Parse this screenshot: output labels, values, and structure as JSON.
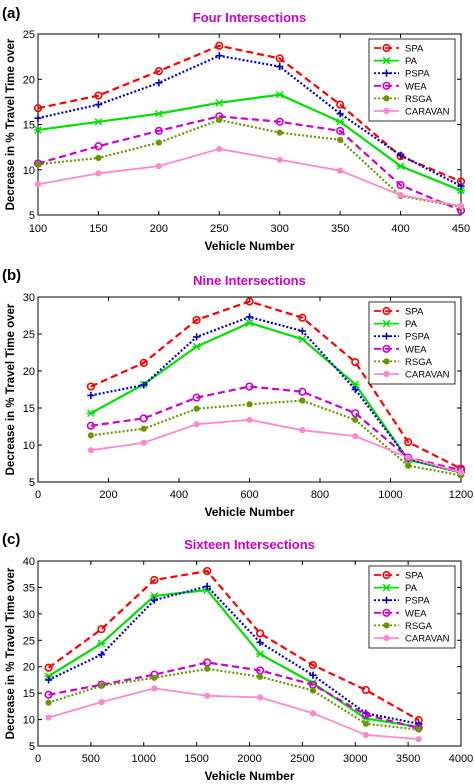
{
  "colors": {
    "SPA": "#ff0000",
    "PA": "#00e000",
    "PSPA": "#0000cc",
    "WEA": "#cc00cc",
    "RSGA": "#669900",
    "CARAVAN": "#ff88cc",
    "title": "#cc00cc"
  },
  "chart_data": [
    {
      "type": "line",
      "panel_label": "(a)",
      "title": "Four Intersections",
      "xlabel": "Vehicle Number",
      "ylabel": "Decrease in % Travel Time over",
      "xlim": [
        100,
        450
      ],
      "ylim": [
        5,
        25
      ],
      "xticks": [
        100,
        150,
        200,
        250,
        300,
        350,
        400,
        450
      ],
      "yticks": [
        5,
        10,
        15,
        20,
        25
      ],
      "x": [
        100,
        150,
        200,
        250,
        300,
        350,
        400,
        450
      ],
      "legend_position": "top-right",
      "grid": false,
      "series": [
        {
          "name": "SPA",
          "values": [
            16.8,
            18.2,
            20.9,
            23.7,
            22.3,
            17.2,
            11.5,
            8.7
          ]
        },
        {
          "name": "PA",
          "values": [
            14.4,
            15.3,
            16.2,
            17.4,
            18.3,
            15.3,
            10.4,
            7.7
          ]
        },
        {
          "name": "PSPA",
          "values": [
            15.7,
            17.2,
            19.6,
            22.6,
            21.4,
            16.2,
            11.6,
            8.2
          ]
        },
        {
          "name": "WEA",
          "values": [
            10.7,
            12.6,
            14.3,
            15.9,
            15.3,
            14.3,
            8.3,
            5.5
          ]
        },
        {
          "name": "RSGA",
          "values": [
            10.6,
            11.3,
            13.0,
            15.5,
            14.1,
            13.3,
            7.1,
            5.9
          ]
        },
        {
          "name": "CARAVAN",
          "values": [
            8.4,
            9.6,
            10.4,
            12.3,
            11.1,
            9.9,
            7.2,
            6.0
          ]
        }
      ]
    },
    {
      "type": "line",
      "panel_label": "(b)",
      "title": "Nine Intersections",
      "xlabel": "Vehicle Number",
      "ylabel": "Decrease in % Travel Time over",
      "xlim": [
        0,
        1200
      ],
      "ylim": [
        5,
        30
      ],
      "xticks": [
        0,
        200,
        400,
        600,
        800,
        1000,
        1200
      ],
      "yticks": [
        5,
        10,
        15,
        20,
        25,
        30
      ],
      "x": [
        150,
        300,
        450,
        600,
        750,
        900,
        1050,
        1200
      ],
      "legend_position": "top-right",
      "grid": false,
      "series": [
        {
          "name": "SPA",
          "values": [
            17.9,
            21.1,
            26.9,
            29.4,
            27.2,
            21.2,
            10.4,
            6.8
          ]
        },
        {
          "name": "PA",
          "values": [
            14.3,
            18.2,
            23.3,
            26.5,
            24.3,
            18.2,
            8.0,
            6.3
          ]
        },
        {
          "name": "PSPA",
          "values": [
            16.7,
            18.1,
            24.6,
            27.3,
            25.4,
            17.5,
            8.1,
            6.3
          ]
        },
        {
          "name": "WEA",
          "values": [
            12.6,
            13.6,
            16.4,
            17.9,
            17.2,
            14.3,
            8.3,
            6.6
          ]
        },
        {
          "name": "RSGA",
          "values": [
            11.3,
            12.2,
            14.9,
            15.5,
            16.0,
            13.4,
            7.2,
            5.9
          ]
        },
        {
          "name": "CARAVAN",
          "values": [
            9.3,
            10.3,
            12.8,
            13.4,
            12.0,
            11.2,
            8.3,
            6.3
          ]
        }
      ]
    },
    {
      "type": "line",
      "panel_label": "(c)",
      "title": "Sixteen Intersections",
      "xlabel": "Vehicle Number",
      "ylabel": "Decrease in % Travel Time over",
      "xlim": [
        0,
        4000
      ],
      "ylim": [
        5,
        40
      ],
      "xticks": [
        0,
        500,
        1000,
        1500,
        2000,
        2500,
        3000,
        3500,
        4000
      ],
      "yticks": [
        5,
        10,
        15,
        20,
        25,
        30,
        35,
        40
      ],
      "x": [
        100,
        600,
        1100,
        1600,
        2100,
        2600,
        3100,
        3600
      ],
      "legend_position": "top-right",
      "grid": false,
      "series": [
        {
          "name": "SPA",
          "values": [
            19.8,
            27.1,
            36.4,
            38.1,
            26.3,
            20.3,
            15.6,
            9.9
          ]
        },
        {
          "name": "PA",
          "values": [
            18.2,
            24.4,
            33.4,
            34.5,
            22.4,
            16.9,
            10.2,
            8.6
          ]
        },
        {
          "name": "PSPA",
          "values": [
            17.5,
            22.3,
            32.6,
            35.2,
            24.6,
            18.4,
            11.2,
            9.2
          ]
        },
        {
          "name": "WEA",
          "values": [
            14.7,
            16.6,
            18.5,
            20.8,
            19.3,
            16.6,
            10.9,
            8.4
          ]
        },
        {
          "name": "RSGA",
          "values": [
            13.2,
            16.4,
            17.9,
            19.6,
            18.1,
            15.5,
            9.2,
            8.1
          ]
        },
        {
          "name": "CARAVAN",
          "values": [
            10.4,
            13.3,
            15.9,
            14.5,
            14.2,
            11.2,
            7.1,
            6.3
          ]
        }
      ]
    }
  ]
}
